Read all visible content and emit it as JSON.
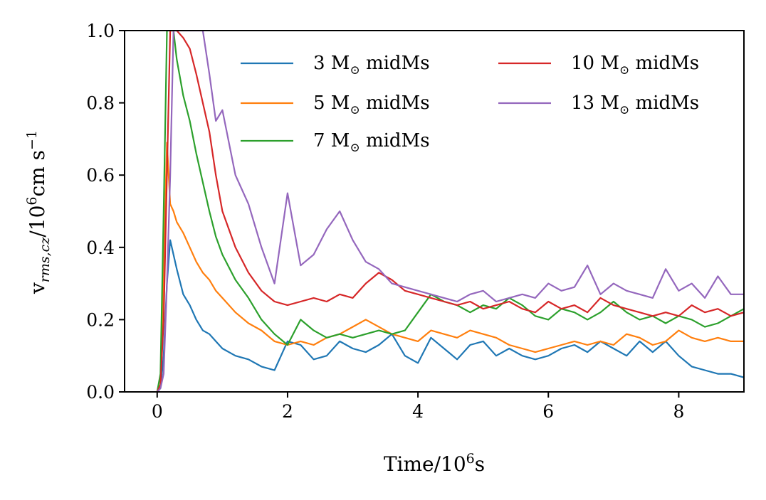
{
  "chart_data": {
    "type": "line",
    "xlabel": "Time/10⁶s",
    "ylabel": "v_{rms,cz}/10⁶cm s⁻¹",
    "xlabel_parts": {
      "a": "Time/10",
      "sup": "6",
      "b": "s"
    },
    "ylabel_parts": {
      "v": "v",
      "sub": "rms,cz",
      "mid": "/10",
      "sup1": "6",
      "unit": "cm s",
      "sup2": "−1"
    },
    "xlim": [
      -0.5,
      9.0
    ],
    "ylim": [
      0.0,
      1.0
    ],
    "xticks": [
      0,
      2,
      4,
      6,
      8
    ],
    "xtick_labels": [
      "0",
      "2",
      "4",
      "6",
      "8"
    ],
    "yticks": [
      0.0,
      0.2,
      0.4,
      0.6,
      0.8,
      1.0
    ],
    "ytick_labels": [
      "0.0",
      "0.2",
      "0.4",
      "0.6",
      "0.8",
      "1.0"
    ],
    "grid": false,
    "legend_position": "top-right, two columns",
    "series": [
      {
        "name": "3 M⊙ midMs",
        "name_parts": {
          "num": "3",
          "tail": "midMs"
        },
        "color": "#1f77b4",
        "x": [
          0.0,
          0.05,
          0.1,
          0.15,
          0.2,
          0.25,
          0.3,
          0.4,
          0.5,
          0.6,
          0.7,
          0.8,
          0.9,
          1.0,
          1.2,
          1.4,
          1.6,
          1.8,
          2.0,
          2.2,
          2.4,
          2.6,
          2.8,
          3.0,
          3.2,
          3.4,
          3.6,
          3.8,
          4.0,
          4.2,
          4.4,
          4.6,
          4.8,
          5.0,
          5.2,
          5.4,
          5.6,
          5.8,
          6.0,
          6.2,
          6.4,
          6.6,
          6.8,
          7.0,
          7.2,
          7.4,
          7.6,
          7.8,
          8.0,
          8.2,
          8.4,
          8.6,
          8.8,
          9.0
        ],
        "y": [
          0.0,
          0.01,
          0.1,
          0.3,
          0.42,
          0.38,
          0.34,
          0.27,
          0.24,
          0.2,
          0.17,
          0.16,
          0.14,
          0.12,
          0.1,
          0.09,
          0.07,
          0.06,
          0.14,
          0.13,
          0.09,
          0.1,
          0.14,
          0.12,
          0.11,
          0.13,
          0.16,
          0.1,
          0.08,
          0.15,
          0.12,
          0.09,
          0.13,
          0.14,
          0.1,
          0.12,
          0.1,
          0.09,
          0.1,
          0.12,
          0.13,
          0.11,
          0.14,
          0.12,
          0.1,
          0.14,
          0.11,
          0.14,
          0.1,
          0.07,
          0.06,
          0.05,
          0.05,
          0.04
        ]
      },
      {
        "name": "5 M⊙ midMs",
        "name_parts": {
          "num": "5",
          "tail": "midMs"
        },
        "color": "#ff7f0e",
        "x": [
          0.0,
          0.05,
          0.1,
          0.15,
          0.2,
          0.25,
          0.3,
          0.4,
          0.5,
          0.6,
          0.7,
          0.8,
          0.9,
          1.0,
          1.2,
          1.4,
          1.6,
          1.8,
          2.0,
          2.2,
          2.4,
          2.6,
          2.8,
          3.0,
          3.2,
          3.4,
          3.6,
          3.8,
          4.0,
          4.2,
          4.4,
          4.6,
          4.8,
          5.0,
          5.2,
          5.4,
          5.6,
          5.8,
          6.0,
          6.2,
          6.4,
          6.6,
          6.8,
          7.0,
          7.2,
          7.4,
          7.6,
          7.8,
          8.0,
          8.2,
          8.4,
          8.6,
          8.8,
          9.0
        ],
        "y": [
          0.0,
          0.02,
          0.35,
          0.69,
          0.52,
          0.5,
          0.47,
          0.44,
          0.4,
          0.36,
          0.33,
          0.31,
          0.28,
          0.26,
          0.22,
          0.19,
          0.17,
          0.14,
          0.13,
          0.14,
          0.13,
          0.15,
          0.16,
          0.18,
          0.2,
          0.18,
          0.16,
          0.15,
          0.14,
          0.17,
          0.16,
          0.15,
          0.17,
          0.16,
          0.15,
          0.13,
          0.12,
          0.11,
          0.12,
          0.13,
          0.14,
          0.13,
          0.14,
          0.13,
          0.16,
          0.15,
          0.13,
          0.14,
          0.17,
          0.15,
          0.14,
          0.15,
          0.14,
          0.14
        ]
      },
      {
        "name": "7 M⊙ midMs",
        "name_parts": {
          "num": "7",
          "tail": "midMs"
        },
        "color": "#2ca02c",
        "x": [
          0.0,
          0.05,
          0.1,
          0.15,
          0.2,
          0.25,
          0.3,
          0.4,
          0.5,
          0.6,
          0.7,
          0.8,
          0.9,
          1.0,
          1.2,
          1.4,
          1.6,
          1.8,
          2.0,
          2.2,
          2.4,
          2.6,
          2.8,
          3.0,
          3.2,
          3.4,
          3.6,
          3.8,
          4.0,
          4.2,
          4.4,
          4.6,
          4.8,
          5.0,
          5.2,
          5.4,
          5.6,
          5.8,
          6.0,
          6.2,
          6.4,
          6.6,
          6.8,
          7.0,
          7.2,
          7.4,
          7.6,
          7.8,
          8.0,
          8.2,
          8.4,
          8.6,
          8.8,
          9.0
        ],
        "y": [
          0.0,
          0.05,
          0.5,
          1.0,
          1.0,
          1.0,
          0.92,
          0.82,
          0.75,
          0.66,
          0.58,
          0.5,
          0.43,
          0.38,
          0.31,
          0.26,
          0.2,
          0.16,
          0.13,
          0.2,
          0.17,
          0.15,
          0.16,
          0.15,
          0.16,
          0.17,
          0.16,
          0.17,
          0.22,
          0.27,
          0.25,
          0.24,
          0.22,
          0.24,
          0.23,
          0.26,
          0.24,
          0.21,
          0.2,
          0.23,
          0.22,
          0.2,
          0.22,
          0.25,
          0.22,
          0.2,
          0.21,
          0.19,
          0.21,
          0.2,
          0.18,
          0.19,
          0.21,
          0.23
        ]
      },
      {
        "name": "10 M⊙ midMs",
        "name_parts": {
          "num": "10",
          "tail": "midMs"
        },
        "color": "#d62728",
        "x": [
          0.0,
          0.05,
          0.1,
          0.15,
          0.2,
          0.25,
          0.3,
          0.4,
          0.5,
          0.6,
          0.7,
          0.8,
          0.9,
          1.0,
          1.2,
          1.4,
          1.6,
          1.8,
          2.0,
          2.2,
          2.4,
          2.6,
          2.8,
          3.0,
          3.2,
          3.4,
          3.6,
          3.8,
          4.0,
          4.2,
          4.4,
          4.6,
          4.8,
          5.0,
          5.2,
          5.4,
          5.6,
          5.8,
          6.0,
          6.2,
          6.4,
          6.6,
          6.8,
          7.0,
          7.2,
          7.4,
          7.6,
          7.8,
          8.0,
          8.2,
          8.4,
          8.6,
          8.8,
          9.0
        ],
        "y": [
          0.0,
          0.02,
          0.2,
          0.6,
          1.0,
          1.0,
          1.0,
          0.98,
          0.95,
          0.88,
          0.8,
          0.72,
          0.6,
          0.5,
          0.4,
          0.33,
          0.28,
          0.25,
          0.24,
          0.25,
          0.26,
          0.25,
          0.27,
          0.26,
          0.3,
          0.33,
          0.31,
          0.28,
          0.27,
          0.26,
          0.25,
          0.24,
          0.25,
          0.23,
          0.24,
          0.25,
          0.23,
          0.22,
          0.25,
          0.23,
          0.24,
          0.22,
          0.26,
          0.24,
          0.23,
          0.22,
          0.21,
          0.22,
          0.21,
          0.24,
          0.22,
          0.23,
          0.21,
          0.22
        ]
      },
      {
        "name": "13 M⊙ midMs",
        "name_parts": {
          "num": "13",
          "tail": "midMs"
        },
        "color": "#9467bd",
        "x": [
          0.0,
          0.05,
          0.1,
          0.15,
          0.2,
          0.25,
          0.3,
          0.4,
          0.5,
          0.6,
          0.7,
          0.8,
          0.9,
          1.0,
          1.2,
          1.4,
          1.6,
          1.8,
          2.0,
          2.2,
          2.4,
          2.6,
          2.8,
          3.0,
          3.2,
          3.4,
          3.6,
          3.8,
          4.0,
          4.2,
          4.4,
          4.6,
          4.8,
          5.0,
          5.2,
          5.4,
          5.6,
          5.8,
          6.0,
          6.2,
          6.4,
          6.6,
          6.8,
          7.0,
          7.2,
          7.4,
          7.6,
          7.8,
          8.0,
          8.2,
          8.4,
          8.6,
          8.8,
          9.0
        ],
        "y": [
          0.0,
          0.01,
          0.05,
          0.3,
          0.6,
          1.0,
          1.0,
          1.0,
          1.0,
          1.0,
          1.0,
          0.88,
          0.75,
          0.78,
          0.6,
          0.52,
          0.4,
          0.3,
          0.55,
          0.35,
          0.38,
          0.45,
          0.5,
          0.42,
          0.36,
          0.34,
          0.3,
          0.29,
          0.28,
          0.27,
          0.26,
          0.25,
          0.27,
          0.28,
          0.25,
          0.26,
          0.27,
          0.26,
          0.3,
          0.28,
          0.29,
          0.35,
          0.27,
          0.3,
          0.28,
          0.27,
          0.26,
          0.34,
          0.28,
          0.3,
          0.26,
          0.32,
          0.27,
          0.27
        ]
      }
    ]
  }
}
